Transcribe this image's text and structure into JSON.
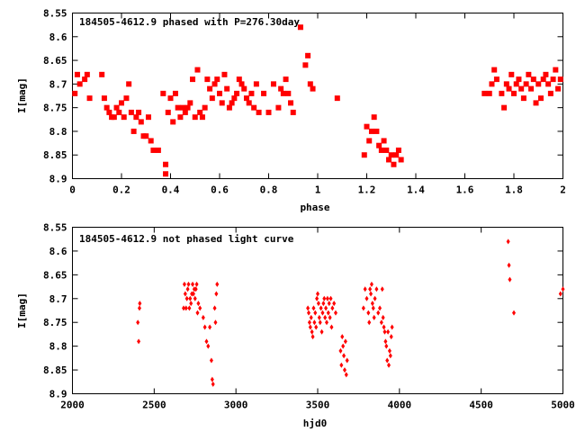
{
  "chart_data": [
    {
      "type": "scatter",
      "title": "184505-4612.9 phased with P=276.30day",
      "xlabel": "phase",
      "ylabel": "I[mag]",
      "xlim": [
        0,
        2
      ],
      "ylim": [
        8.55,
        8.9
      ],
      "y_inverted": true,
      "grid": false,
      "xticks": [
        "0",
        "0.2",
        "0.4",
        "0.6",
        "0.8",
        "1",
        "1.2",
        "1.4",
        "1.6",
        "1.8",
        "2"
      ],
      "yticks": [
        "8.55",
        "8.6",
        "8.65",
        "8.7",
        "8.75",
        "8.8",
        "8.85",
        "8.9"
      ],
      "marker": "filled-square",
      "color": "#ff0000",
      "series": [
        {
          "x": [
            0.01,
            0.02,
            0.03,
            0.05,
            0.06,
            0.07,
            0.12,
            0.13,
            0.14,
            0.15,
            0.16,
            0.17,
            0.18,
            0.19,
            0.2,
            0.21,
            0.22,
            0.23,
            0.24,
            0.25,
            0.26,
            0.27,
            0.28,
            0.29,
            0.3,
            0.31,
            0.32,
            0.33,
            0.35,
            0.37,
            0.38,
            0.38,
            0.39,
            0.4,
            0.41,
            0.42,
            0.43,
            0.44,
            0.45,
            0.46,
            0.47,
            0.48,
            0.49,
            0.5,
            0.51,
            0.52,
            0.53,
            0.54,
            0.55,
            0.56,
            0.57,
            0.58,
            0.59,
            0.6,
            0.61,
            0.62,
            0.63,
            0.64,
            0.65,
            0.66,
            0.67,
            0.68,
            0.69,
            0.7,
            0.71,
            0.72,
            0.73,
            0.74,
            0.75,
            0.76,
            0.78,
            0.8,
            0.82,
            0.84,
            0.85,
            0.86,
            0.87,
            0.88,
            0.89,
            0.9,
            0.93,
            0.95,
            0.96,
            0.97,
            0.98,
            1.08,
            1.19,
            1.2,
            1.21,
            1.22,
            1.23,
            1.24,
            1.25,
            1.26,
            1.27,
            1.28,
            1.29,
            1.3,
            1.31,
            1.32,
            1.33,
            1.34,
            1.68,
            1.7,
            1.71,
            1.72,
            1.73,
            1.75,
            1.76,
            1.77,
            1.78,
            1.79,
            1.8,
            1.81,
            1.82,
            1.83,
            1.84,
            1.85,
            1.86,
            1.87,
            1.88,
            1.89,
            1.9,
            1.91,
            1.92,
            1.93,
            1.94,
            1.95,
            1.96,
            1.97,
            1.98,
            1.99
          ],
          "y": [
            8.72,
            8.68,
            8.7,
            8.69,
            8.68,
            8.73,
            8.68,
            8.73,
            8.75,
            8.76,
            8.77,
            8.77,
            8.75,
            8.76,
            8.74,
            8.77,
            8.73,
            8.7,
            8.76,
            8.8,
            8.77,
            8.76,
            8.78,
            8.81,
            8.81,
            8.77,
            8.82,
            8.84,
            8.84,
            8.72,
            8.87,
            8.89,
            8.76,
            8.73,
            8.78,
            8.72,
            8.75,
            8.77,
            8.75,
            8.76,
            8.75,
            8.74,
            8.69,
            8.77,
            8.67,
            8.76,
            8.77,
            8.75,
            8.69,
            8.71,
            8.73,
            8.7,
            8.69,
            8.72,
            8.74,
            8.68,
            8.71,
            8.75,
            8.74,
            8.73,
            8.72,
            8.69,
            8.7,
            8.71,
            8.73,
            8.74,
            8.72,
            8.75,
            8.7,
            8.76,
            8.72,
            8.76,
            8.7,
            8.75,
            8.71,
            8.72,
            8.69,
            8.72,
            8.74,
            8.76,
            8.58,
            8.66,
            8.64,
            8.7,
            8.71,
            8.73,
            8.85,
            8.79,
            8.82,
            8.8,
            8.77,
            8.8,
            8.83,
            8.84,
            8.82,
            8.84,
            8.86,
            8.85,
            8.87,
            8.85,
            8.84,
            8.86,
            8.72,
            8.72,
            8.7,
            8.67,
            8.69,
            8.72,
            8.75,
            8.7,
            8.71,
            8.68,
            8.72,
            8.7,
            8.69,
            8.71,
            8.73,
            8.7,
            8.68,
            8.71,
            8.69,
            8.74,
            8.7,
            8.73,
            8.69,
            8.68,
            8.7,
            8.72,
            8.69,
            8.67,
            8.71,
            8.69
          ],
          "color": "#ff0000"
        }
      ]
    },
    {
      "type": "scatter",
      "title": "184505-4612.9 not phased light curve",
      "xlabel": "hjd0",
      "ylabel": "I[mag]",
      "xlim": [
        2000,
        5000
      ],
      "ylim": [
        8.55,
        8.9
      ],
      "y_inverted": true,
      "grid": false,
      "xticks": [
        "2000",
        "2500",
        "3000",
        "3500",
        "4000",
        "4500",
        "5000"
      ],
      "yticks": [
        "8.55",
        "8.6",
        "8.65",
        "8.7",
        "8.75",
        "8.8",
        "8.85",
        "8.9"
      ],
      "marker": "small-diamond",
      "color": "#ff0000",
      "series": [
        {
          "x": [
            2400,
            2405,
            2410,
            2412,
            2680,
            2685,
            2690,
            2695,
            2700,
            2705,
            2710,
            2715,
            2720,
            2725,
            2730,
            2735,
            2740,
            2745,
            2750,
            2755,
            2760,
            2765,
            2770,
            2780,
            2800,
            2810,
            2820,
            2830,
            2840,
            2850,
            2855,
            2860,
            2870,
            2875,
            2880,
            2885,
            3440,
            3445,
            3450,
            3455,
            3460,
            3465,
            3470,
            3475,
            3480,
            3485,
            3490,
            3495,
            3500,
            3505,
            3510,
            3515,
            3520,
            3525,
            3530,
            3535,
            3540,
            3545,
            3550,
            3555,
            3560,
            3565,
            3570,
            3575,
            3580,
            3585,
            3590,
            3600,
            3610,
            3640,
            3645,
            3650,
            3655,
            3660,
            3665,
            3670,
            3675,
            3680,
            3780,
            3790,
            3800,
            3810,
            3815,
            3820,
            3825,
            3830,
            3835,
            3840,
            3845,
            3850,
            3860,
            3870,
            3880,
            3890,
            3895,
            3900,
            3905,
            3910,
            3915,
            3920,
            3925,
            3930,
            3935,
            3940,
            3945,
            3950,
            3955,
            4665,
            4670,
            4675,
            4700,
            4985,
            5000
          ],
          "y": [
            8.75,
            8.79,
            8.72,
            8.71,
            8.72,
            8.67,
            8.69,
            8.72,
            8.7,
            8.68,
            8.67,
            8.72,
            8.7,
            8.71,
            8.69,
            8.67,
            8.69,
            8.68,
            8.7,
            8.68,
            8.67,
            8.73,
            8.71,
            8.72,
            8.74,
            8.76,
            8.79,
            8.8,
            8.76,
            8.83,
            8.87,
            8.88,
            8.72,
            8.75,
            8.69,
            8.67,
            8.72,
            8.73,
            8.75,
            8.76,
            8.74,
            8.77,
            8.78,
            8.72,
            8.75,
            8.73,
            8.76,
            8.7,
            8.69,
            8.71,
            8.74,
            8.75,
            8.72,
            8.77,
            8.73,
            8.71,
            8.7,
            8.74,
            8.72,
            8.75,
            8.7,
            8.73,
            8.71,
            8.74,
            8.7,
            8.76,
            8.72,
            8.71,
            8.73,
            8.81,
            8.84,
            8.78,
            8.8,
            8.82,
            8.85,
            8.79,
            8.86,
            8.83,
            8.72,
            8.68,
            8.7,
            8.73,
            8.75,
            8.68,
            8.69,
            8.67,
            8.71,
            8.72,
            8.74,
            8.7,
            8.68,
            8.73,
            8.72,
            8.75,
            8.68,
            8.74,
            8.76,
            8.77,
            8.79,
            8.8,
            8.83,
            8.77,
            8.84,
            8.81,
            8.82,
            8.78,
            8.76,
            8.58,
            8.63,
            8.66,
            8.73,
            8.69,
            8.68
          ],
          "color": "#ff0000"
        }
      ]
    }
  ]
}
